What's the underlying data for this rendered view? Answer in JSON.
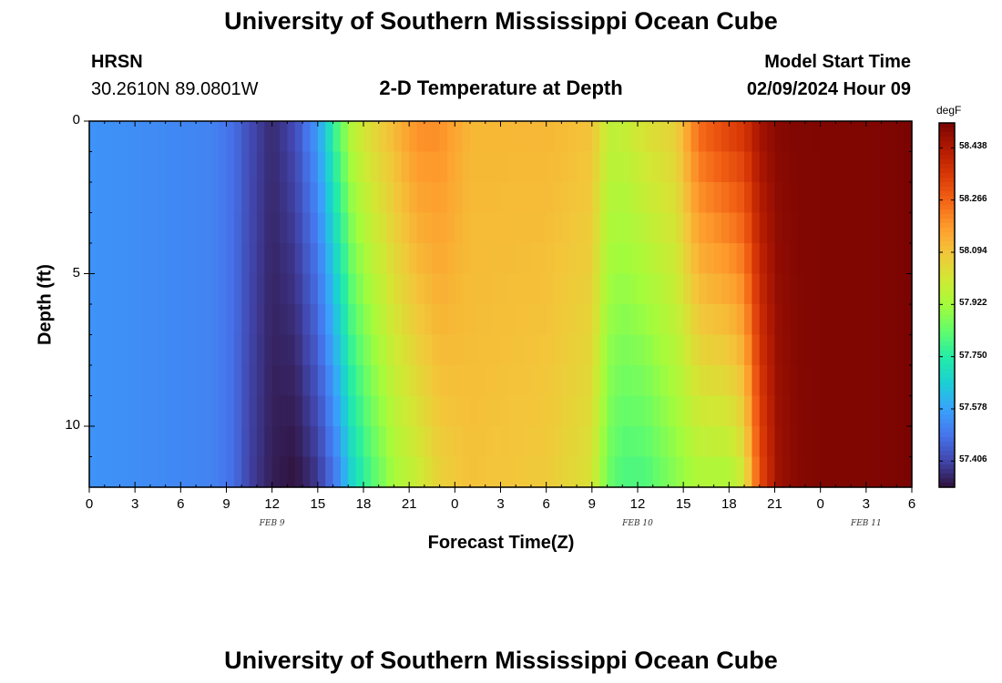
{
  "header": {
    "title": "University of Southern Mississippi Ocean Cube",
    "station_id": "HRSN",
    "coords": "30.2610N  89.0801W",
    "plot_title": "2-D Temperature at Depth",
    "model_start_label": "Model Start Time",
    "model_start_value": "02/09/2024 Hour 09"
  },
  "footer": {
    "title": "University of Southern Mississippi Ocean Cube"
  },
  "chart_data": {
    "type": "heatmap",
    "title": "2-D Temperature at Depth",
    "xlabel": "Forecast Time(Z)",
    "ylabel": "Depth (ft)",
    "x_tick_labels": [
      "0",
      "3",
      "6",
      "9",
      "12",
      "15",
      "18",
      "21",
      "0",
      "3",
      "6",
      "9",
      "12",
      "15",
      "18",
      "21",
      "0",
      "3",
      "6"
    ],
    "x_date_labels": [
      "FEB 9",
      "FEB 10",
      "FEB 11"
    ],
    "x_range_hours": [
      0,
      54
    ],
    "y_range_ft": [
      0,
      12
    ],
    "y_tick_labels": [
      "0",
      "5",
      "10"
    ],
    "y_inverted": true,
    "colorbar": {
      "unit": "degF",
      "range": [
        57.32,
        58.52
      ],
      "ticks": [
        "58.438",
        "58.266",
        "58.094",
        "57.922",
        "57.750",
        "57.578",
        "57.406"
      ],
      "colors": [
        "#30123b",
        "#4145ab",
        "#4675ed",
        "#39a2fc",
        "#1bcfd4",
        "#24eca6",
        "#61fc6c",
        "#a4fc3b",
        "#d1e834",
        "#f3c63a",
        "#fe9b2d",
        "#f36315",
        "#d93806",
        "#b11901",
        "#7a0402"
      ]
    },
    "temperature_profile": {
      "hours": [
        0,
        8,
        9.5,
        10.5,
        12,
        13.5,
        15,
        16.2,
        17.3,
        18.5,
        20,
        21.5,
        23,
        25,
        30,
        33,
        34,
        35,
        36.5,
        38.5,
        40,
        42,
        43,
        44,
        45.2,
        46.5,
        48,
        51,
        54
      ],
      "surface_degF": [
        57.55,
        57.52,
        57.48,
        57.42,
        57.36,
        57.42,
        57.57,
        57.8,
        57.97,
        58.05,
        58.12,
        58.2,
        58.2,
        58.12,
        58.12,
        58.1,
        57.98,
        57.98,
        58.03,
        58.07,
        58.26,
        58.34,
        58.37,
        58.46,
        58.5,
        58.51,
        58.51,
        58.51,
        58.52
      ],
      "bottom_degF": [
        57.55,
        57.52,
        57.48,
        57.4,
        57.34,
        57.32,
        57.38,
        57.5,
        57.68,
        57.8,
        57.92,
        57.98,
        58.06,
        58.1,
        58.08,
        58.02,
        57.85,
        57.8,
        57.8,
        57.88,
        57.93,
        57.93,
        58.0,
        58.3,
        58.46,
        58.5,
        58.51,
        58.51,
        58.52
      ]
    }
  }
}
